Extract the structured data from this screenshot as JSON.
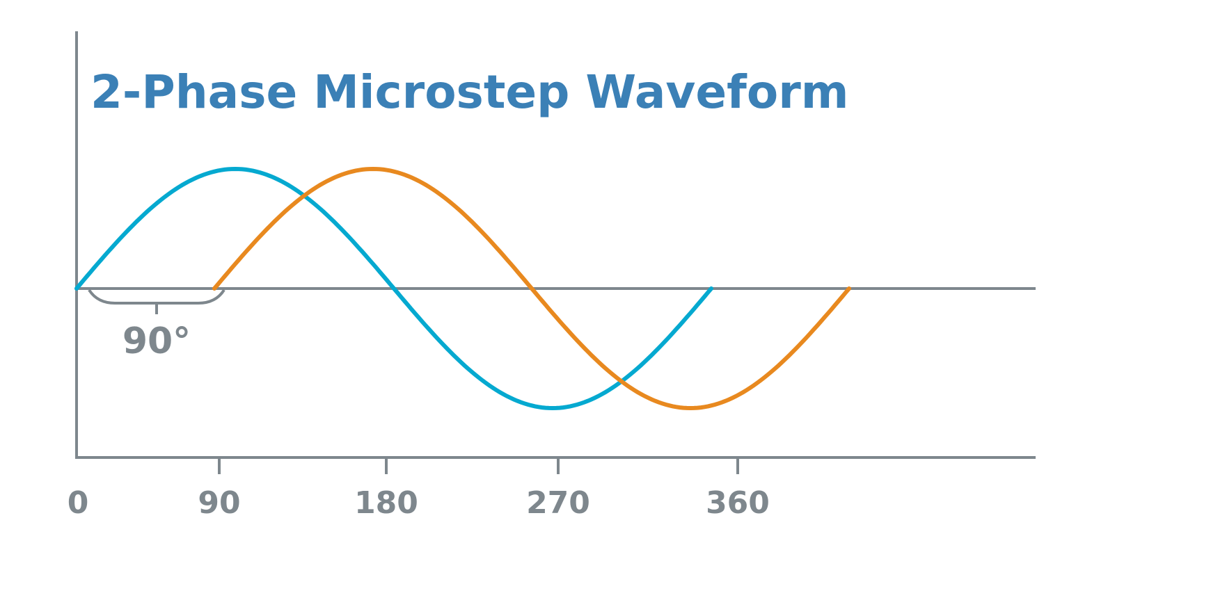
{
  "chart_data": {
    "type": "line",
    "title": "2-Phase Microstep Waveform",
    "xlabel": "",
    "ylabel": "",
    "x_unit": "degrees",
    "xticks": [
      0,
      90,
      180,
      270,
      360
    ],
    "xtick_labels": [
      "0",
      "90",
      "180",
      "270",
      "360"
    ],
    "ylim": [
      -1,
      1
    ],
    "grid": false,
    "legend": "none",
    "series": [
      {
        "color": "#05a9d0",
        "function": "sin(x)",
        "x_start": 0,
        "x_end": 360,
        "amplitude": 1
      },
      {
        "color": "#e8891f",
        "function": "sin(x - 90)",
        "x_start": 90,
        "x_end": 450,
        "amplitude": 1
      }
    ],
    "annotation": {
      "text": "90°",
      "meaning": "phase shift between waveforms",
      "value_deg": 90
    },
    "axis_color": "#7e878d"
  }
}
